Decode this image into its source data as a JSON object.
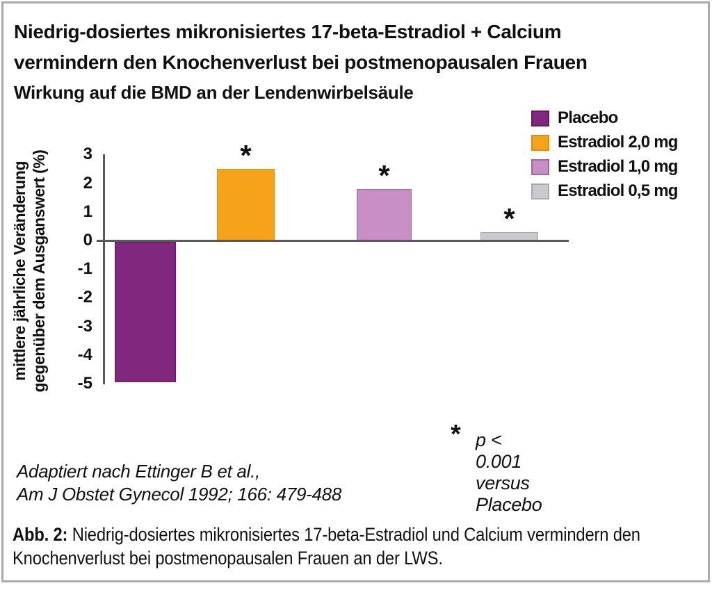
{
  "title": {
    "line1": "Niedrig-dosiertes mikronisiertes 17-beta-Estradiol + Calcium",
    "line2": "vermindern den Knochenverlust bei postmenopausalen Frauen"
  },
  "subtitle": "Wirkung auf die BMD an der Lendenwirbelsäule",
  "chart_data": {
    "type": "bar",
    "title": "Wirkung auf die BMD an der Lendenwirbelsäule",
    "categories": [
      "Placebo",
      "Estradiol 2,0 mg",
      "Estradiol 1,0 mg",
      "Estradiol 0,5 mg"
    ],
    "values": [
      -4.9,
      2.5,
      1.8,
      0.3
    ],
    "significant": [
      false,
      true,
      true,
      true
    ],
    "significance_marker": "*",
    "colors": [
      "#80287d",
      "#f7a21b",
      "#c78fc5",
      "#cacace"
    ],
    "border_colors": [
      "#5f1c5e",
      "#db8e0f",
      "#9e6a9e",
      "#ababaf"
    ],
    "ylabel_line1": "mittlere jährliche Veränderung",
    "ylabel_line2": "gegenüber dem Ausganswert (%)",
    "yticks": [
      3,
      2,
      1,
      0,
      -1,
      -2,
      -3,
      -4,
      -5
    ],
    "ylim": [
      -5,
      3
    ],
    "grid": false,
    "legend_position": "top-right",
    "axis_color": "#58595b"
  },
  "legend": {
    "items": [
      {
        "label": "Placebo",
        "color": "#80287d",
        "border": "#5f1c5e"
      },
      {
        "label": "Estradiol 2,0 mg",
        "color": "#f7a21b",
        "border": "#db8e0f"
      },
      {
        "label": "Estradiol 1,0 mg",
        "color": "#c78fc5",
        "border": "#9e6a9e"
      },
      {
        "label": "Estradiol 0,5 mg",
        "color": "#cacace",
        "border": "#ababaf"
      }
    ]
  },
  "significance_note": {
    "marker": "*",
    "text": "p < 0.001 versus Placebo"
  },
  "source": {
    "line1": "Adaptiert nach Ettinger B et al.,",
    "line2": "Am J Obstet Gynecol 1992; 166: 479-488"
  },
  "caption": {
    "label": "Abb. 2:",
    "text": " Niedrig-dosiertes mikronisiertes 17-beta-Estradiol und Calcium vermindern den Knochenverlust bei postmenopausalen Frauen an der LWS."
  }
}
